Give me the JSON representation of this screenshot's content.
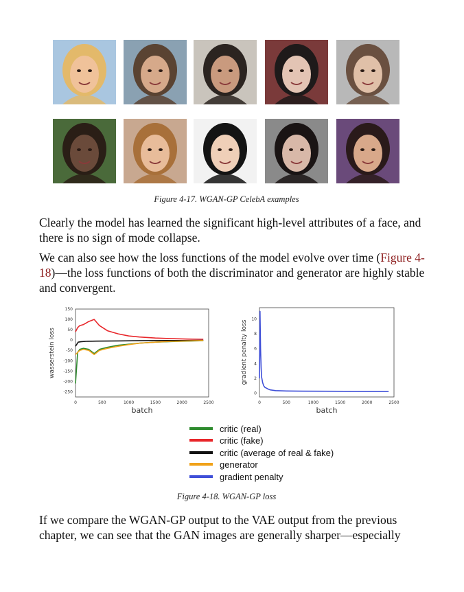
{
  "figure_17": {
    "caption": "Figure 4-17. WGAN-GP CelebA examples",
    "faces": [
      {
        "bg": "#a9c6e0",
        "skin": "#f0c29a",
        "hair": "#e3b96a"
      },
      {
        "bg": "#8aa1b2",
        "skin": "#d6a98a",
        "hair": "#5a4332"
      },
      {
        "bg": "#c9c4bc",
        "skin": "#c99a7e",
        "hair": "#2b2420"
      },
      {
        "bg": "#7a3a3a",
        "skin": "#e3c4b4",
        "hair": "#1e1a1a"
      },
      {
        "bg": "#b8b8b8",
        "skin": "#e0c0a8",
        "hair": "#6a5040"
      },
      {
        "bg": "#4a6a3a",
        "skin": "#6a4a3a",
        "hair": "#2a1e16"
      },
      {
        "bg": "#c8a890",
        "skin": "#e8bc9a",
        "hair": "#a8703a"
      },
      {
        "bg": "#f2f2f2",
        "skin": "#efcfb8",
        "hair": "#141414"
      },
      {
        "bg": "#8a8a8a",
        "skin": "#d8b8a8",
        "hair": "#1a1414"
      },
      {
        "bg": "#6a4a7a",
        "skin": "#d8a88a",
        "hair": "#2a1a1a"
      }
    ]
  },
  "paragraph_1": "Clearly the model has learned the significant high-level attributes of a face, and there is no sign of mode collapse.",
  "paragraph_2": {
    "before": "We can also see how the loss functions of the model evolve over time (",
    "link": "Figure 4-18",
    "after": ")—the loss functions of both the discriminator and generator are highly stable and convergent."
  },
  "chart_data": [
    {
      "type": "line",
      "xlabel": "batch",
      "ylabel": "wasserstein loss",
      "xlim": [
        0,
        2500
      ],
      "ylim": [
        -275,
        150
      ],
      "xticks": [
        0,
        500,
        1000,
        1500,
        2000,
        2500
      ],
      "yticks": [
        150,
        100,
        50,
        0,
        -50,
        -100,
        -150,
        -200,
        -250
      ],
      "grid": false,
      "series": [
        {
          "name": "critic (real)",
          "color": "#2e8b2e",
          "x": [
            0,
            40,
            80,
            150,
            250,
            350,
            450,
            600,
            800,
            1000,
            1200,
            1500,
            1800,
            2100,
            2400
          ],
          "y": [
            -210,
            -60,
            -45,
            -40,
            -45,
            -65,
            -45,
            -35,
            -25,
            -20,
            -15,
            -10,
            -7,
            -5,
            -3
          ]
        },
        {
          "name": "critic (fake)",
          "color": "#e8262a",
          "x": [
            0,
            40,
            80,
            150,
            250,
            350,
            450,
            600,
            800,
            1000,
            1200,
            1500,
            1800,
            2100,
            2400
          ],
          "y": [
            40,
            60,
            70,
            75,
            90,
            100,
            70,
            45,
            30,
            20,
            15,
            10,
            7,
            5,
            4
          ]
        },
        {
          "name": "critic (average of real & fake)",
          "color": "#111111",
          "x": [
            0,
            50,
            100,
            200,
            400,
            800,
            1200,
            1600,
            2000,
            2400
          ],
          "y": [
            -30,
            -10,
            -8,
            -6,
            -5,
            -4,
            -3,
            -2,
            -2,
            -1
          ]
        },
        {
          "name": "generator",
          "color": "#f0a21a",
          "x": [
            0,
            40,
            80,
            150,
            250,
            350,
            450,
            600,
            800,
            1000,
            1200,
            1500,
            1800,
            2100,
            2400
          ],
          "y": [
            -70,
            -60,
            -50,
            -45,
            -50,
            -70,
            -50,
            -40,
            -30,
            -22,
            -15,
            -10,
            -6,
            -4,
            -2
          ]
        }
      ]
    },
    {
      "type": "line",
      "xlabel": "batch",
      "ylabel": "gradient penalty loss",
      "xlim": [
        0,
        2500
      ],
      "ylim": [
        -0.5,
        11.5
      ],
      "xticks": [
        0,
        500,
        1000,
        1500,
        2000,
        2500
      ],
      "yticks": [
        10,
        8,
        6,
        4,
        2,
        0
      ],
      "grid": false,
      "series": [
        {
          "name": "gradient penalty",
          "color": "#3f4fd8",
          "x": [
            0,
            10,
            20,
            30,
            40,
            60,
            80,
            100,
            150,
            200,
            300,
            500,
            800,
            1200,
            1600,
            2000,
            2400
          ],
          "y": [
            2,
            11,
            6,
            3.5,
            2.2,
            1.4,
            1.0,
            0.8,
            0.6,
            0.45,
            0.35,
            0.3,
            0.28,
            0.27,
            0.26,
            0.25,
            0.25
          ]
        }
      ]
    }
  ],
  "legend": [
    {
      "label": "critic (real)",
      "color": "#2e8b2e"
    },
    {
      "label": "critic (fake)",
      "color": "#e8262a"
    },
    {
      "label": "critic (average of real & fake)",
      "color": "#111111"
    },
    {
      "label": "generator",
      "color": "#f0a21a"
    },
    {
      "label": "gradient penalty",
      "color": "#3f4fd8"
    }
  ],
  "figure_18": {
    "caption": "Figure 4-18. WGAN-GP loss"
  },
  "paragraph_3": "If we compare the WGAN-GP output to the VAE output from the previous chapter, we can see that the GAN images are generally sharper—especially"
}
